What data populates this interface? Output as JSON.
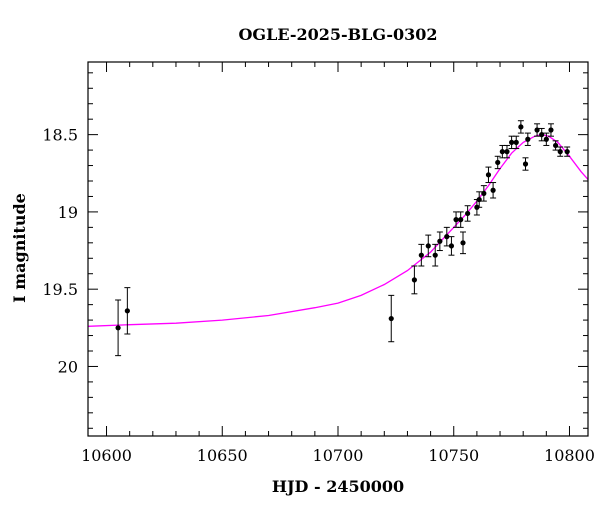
{
  "chart_data": {
    "type": "scatter",
    "title": "OGLE-2025-BLG-0302",
    "xlabel": "HJD - 2450000",
    "ylabel": "I magnitude",
    "xlim": [
      10592,
      10808
    ],
    "ylim": [
      20.45,
      18.03
    ],
    "y_inverted": true,
    "x_major_ticks": [
      10600,
      10650,
      10700,
      10750,
      10800
    ],
    "x_tick_labels": [
      "10600",
      "10650",
      "10700",
      "10750",
      "10800"
    ],
    "y_major_ticks": [
      18.5,
      19,
      19.5,
      20
    ],
    "y_tick_labels": [
      "18.5",
      "19",
      "19.5",
      "20"
    ],
    "x_minor_step": 10,
    "y_minor_step": 0.1,
    "grid": false,
    "colors": {
      "points": "#000000",
      "errorbars": "#000000",
      "model": "#ff00ff",
      "frame": "#000000"
    },
    "series": [
      {
        "kind": "points_with_errorbars",
        "x": [
          10605,
          10609,
          10723,
          10733,
          10736,
          10739,
          10742,
          10744,
          10747,
          10749,
          10751,
          10753,
          10754,
          10756,
          10760,
          10761,
          10763,
          10765,
          10767,
          10769,
          10771,
          10773,
          10775,
          10777,
          10779,
          10781,
          10782,
          10786,
          10788,
          10790,
          10792,
          10794,
          10796,
          10799
        ],
        "y": [
          19.75,
          19.64,
          19.69,
          19.44,
          19.28,
          19.22,
          19.28,
          19.19,
          19.16,
          19.22,
          19.05,
          19.05,
          19.2,
          19.01,
          18.97,
          18.92,
          18.88,
          18.76,
          18.86,
          18.68,
          18.61,
          18.61,
          18.55,
          18.55,
          18.45,
          18.69,
          18.53,
          18.47,
          18.5,
          18.53,
          18.47,
          18.57,
          18.61,
          18.61
        ],
        "yerr": [
          0.18,
          0.15,
          0.15,
          0.09,
          0.07,
          0.07,
          0.07,
          0.06,
          0.06,
          0.06,
          0.05,
          0.05,
          0.07,
          0.05,
          0.05,
          0.05,
          0.05,
          0.05,
          0.05,
          0.04,
          0.04,
          0.04,
          0.04,
          0.04,
          0.04,
          0.04,
          0.04,
          0.04,
          0.04,
          0.04,
          0.04,
          0.03,
          0.03,
          0.03
        ]
      },
      {
        "kind": "model_curve",
        "x": [
          10592,
          10610,
          10630,
          10650,
          10670,
          10690,
          10700,
          10710,
          10720,
          10730,
          10740,
          10745,
          10750,
          10755,
          10760,
          10765,
          10770,
          10775,
          10780,
          10785,
          10788,
          10791,
          10795,
          10800,
          10805,
          10808
        ],
        "y": [
          19.74,
          19.73,
          19.72,
          19.7,
          19.67,
          19.62,
          19.59,
          19.54,
          19.47,
          19.38,
          19.26,
          19.18,
          19.1,
          19.02,
          18.93,
          18.83,
          18.72,
          18.62,
          18.55,
          18.51,
          18.5,
          18.51,
          18.55,
          18.64,
          18.74,
          18.79
        ]
      }
    ]
  }
}
